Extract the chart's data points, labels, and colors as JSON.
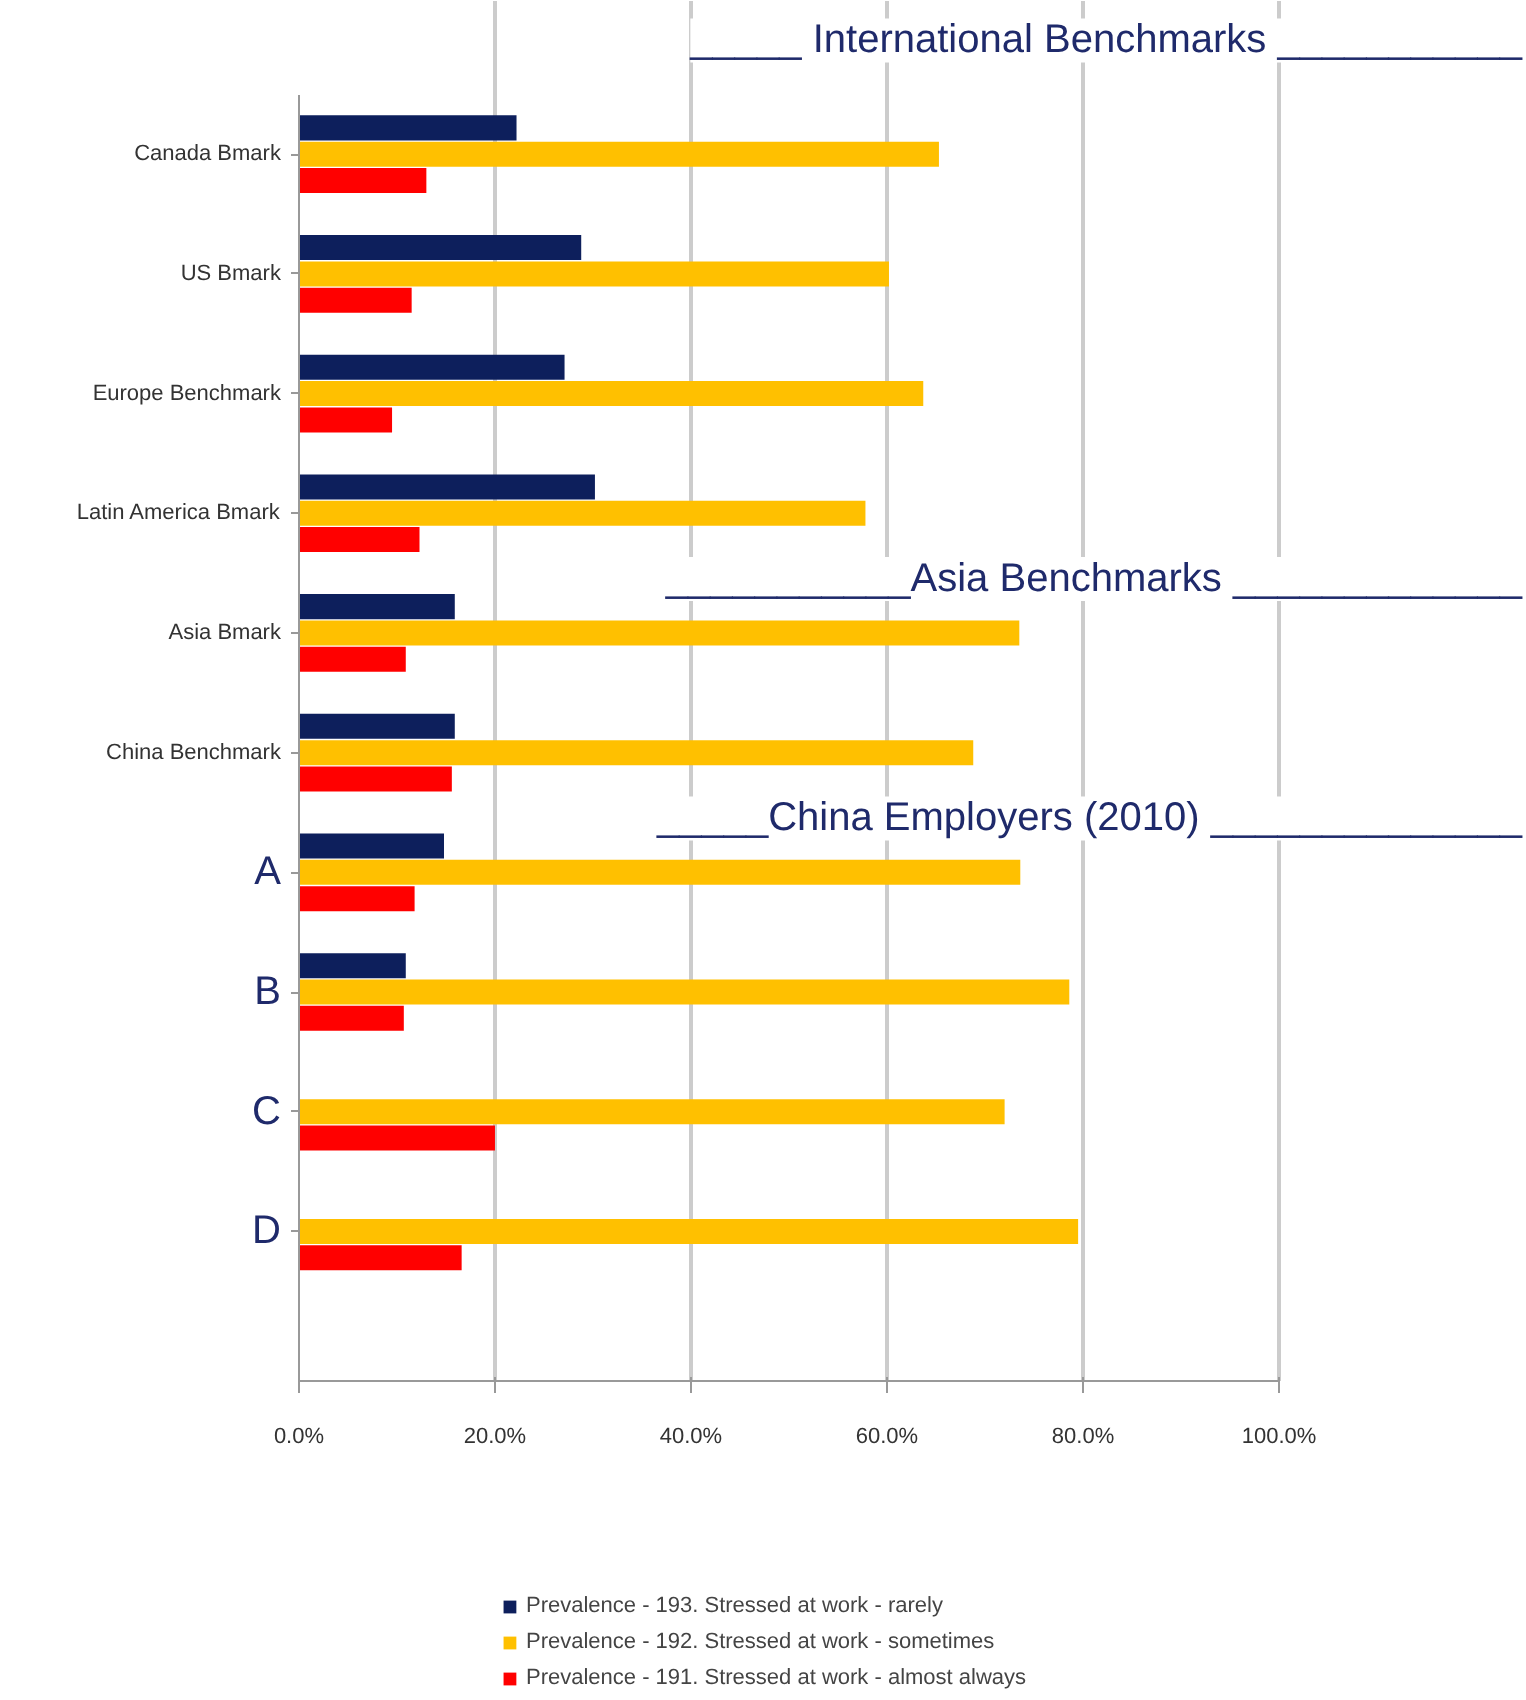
{
  "chart_data": {
    "type": "bar",
    "orientation": "horizontal",
    "categories": [
      "Canada Bmark",
      "US Bmark",
      "Europe Benchmark",
      "Latin America Bmark",
      "Asia Bmark",
      "China Benchmark",
      "A",
      "B",
      "C",
      "D"
    ],
    "series": [
      {
        "name": "Prevalence - 193. Stressed at work - rarely",
        "color": "#0d1f5c",
        "values": [
          22.2,
          28.8,
          27.1,
          30.2,
          15.9,
          15.9,
          14.8,
          10.9,
          null,
          null
        ]
      },
      {
        "name": "Prevalence - 192. Stressed at work - sometimes",
        "color": "#ffc000",
        "values": [
          65.3,
          60.2,
          63.7,
          57.8,
          73.5,
          68.8,
          73.6,
          78.6,
          72.0,
          79.5
        ]
      },
      {
        "name": "Prevalence - 191. Stressed at work - almost always",
        "color": "#ff0000",
        "values": [
          13.0,
          11.5,
          9.5,
          12.3,
          10.9,
          15.6,
          11.8,
          10.7,
          20.0,
          16.6
        ]
      }
    ],
    "xlim": [
      0,
      100
    ],
    "xticks": [
      {
        "value": 0,
        "label": "0.0%"
      },
      {
        "value": 20,
        "label": "20.0%"
      },
      {
        "value": 40,
        "label": "40.0%"
      },
      {
        "value": 60,
        "label": "60.0%"
      },
      {
        "value": 80,
        "label": "80.0%"
      },
      {
        "value": 100,
        "label": "100.0%"
      }
    ],
    "grid": "x",
    "legend": "bottom",
    "annotations": [
      "_____ International Benchmarks ___________",
      "___________Asia Benchmarks _____________",
      "_____China Employers (2010) ______________"
    ]
  }
}
